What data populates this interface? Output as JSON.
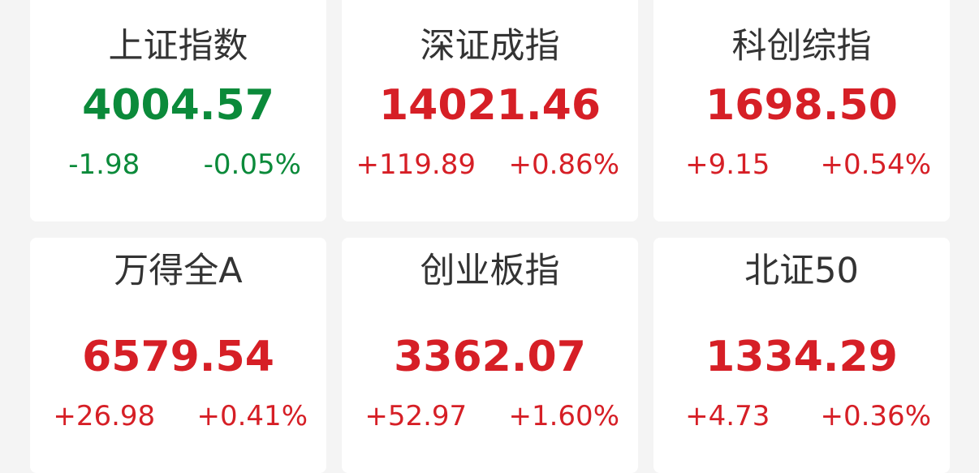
{
  "colors": {
    "up": "#d61f26",
    "down": "#0b8a3a",
    "title": "#333333"
  },
  "indices": [
    {
      "name": "上证指数",
      "value": "4004.57",
      "change": "-1.98",
      "pct": "-0.05%",
      "trend": "down"
    },
    {
      "name": "深证成指",
      "value": "14021.46",
      "change": "+119.89",
      "pct": "+0.86%",
      "trend": "up"
    },
    {
      "name": "科创综指",
      "value": "1698.50",
      "change": "+9.15",
      "pct": "+0.54%",
      "trend": "up"
    },
    {
      "name": "万得全A",
      "value": "6579.54",
      "change": "+26.98",
      "pct": "+0.41%",
      "trend": "up"
    },
    {
      "name": "创业板指",
      "value": "3362.07",
      "change": "+52.97",
      "pct": "+1.60%",
      "trend": "up"
    },
    {
      "name": "北证50",
      "value": "1334.29",
      "change": "+4.73",
      "pct": "+0.36%",
      "trend": "up"
    }
  ]
}
